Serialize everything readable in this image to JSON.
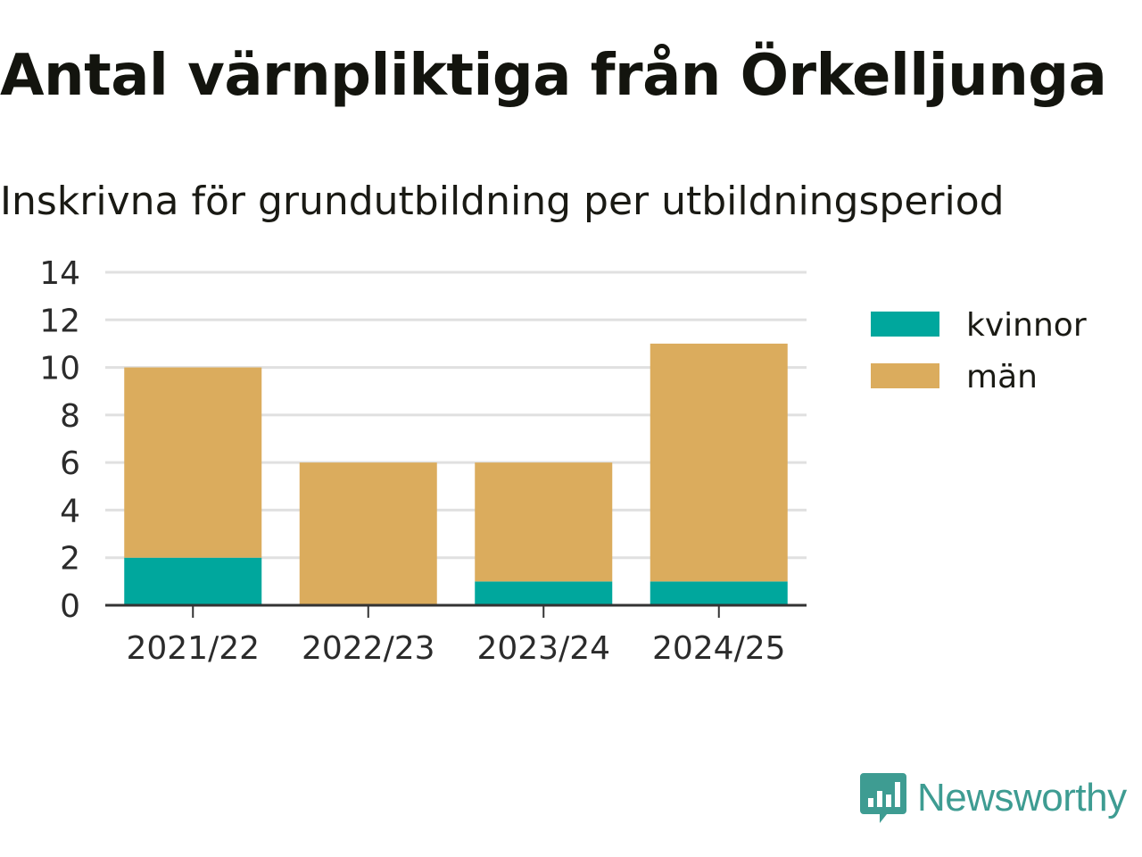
{
  "chart_data": {
    "type": "bar",
    "stacked": true,
    "title": "Antal värnpliktiga från Örkelljunga",
    "subtitle": "Inskrivna för grundutbildning per utbildningsperiod",
    "categories": [
      "2021/22",
      "2022/23",
      "2023/24",
      "2024/25"
    ],
    "series": [
      {
        "name": "kvinnor",
        "color": "#00a79d",
        "values": [
          2,
          0,
          1,
          1
        ]
      },
      {
        "name": "män",
        "color": "#dbac5d",
        "values": [
          8,
          6,
          5,
          10
        ]
      }
    ],
    "ylim": [
      0,
      14
    ],
    "yticks": [
      "0",
      "2",
      "4",
      "6",
      "8",
      "10",
      "12",
      "14"
    ],
    "grid": true,
    "legend_position": "right"
  },
  "brand": {
    "name": "Newsworthy",
    "color": "#3e9c92"
  }
}
